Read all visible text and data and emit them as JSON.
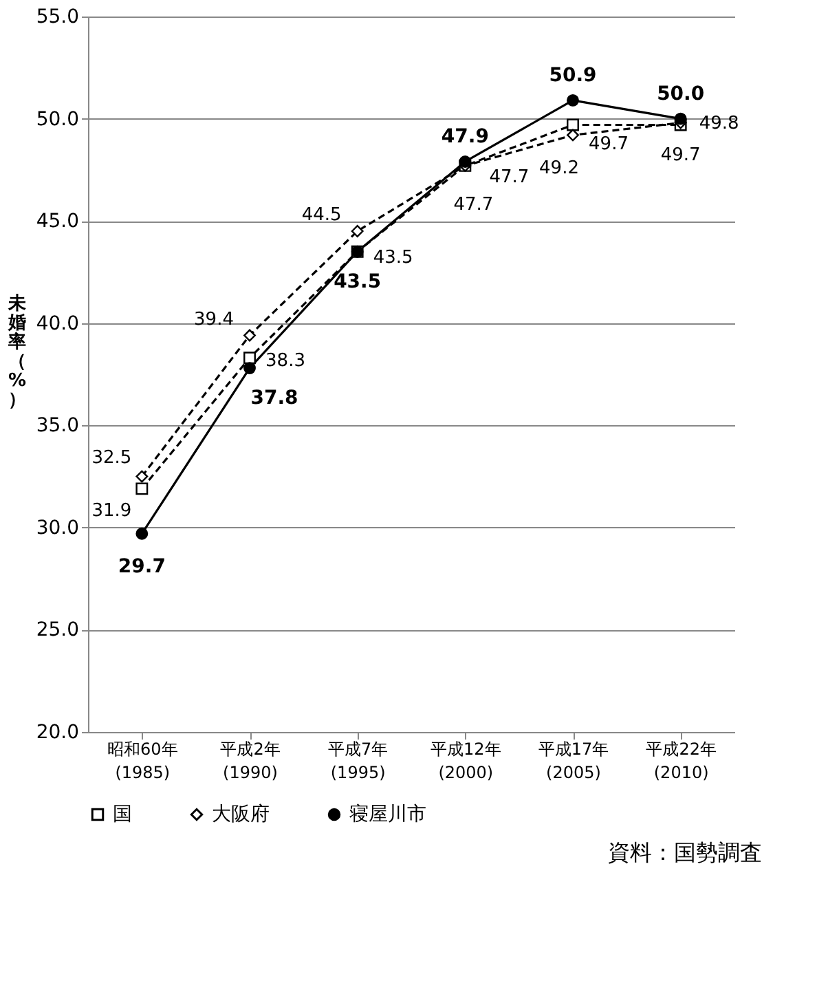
{
  "chart_data": {
    "type": "line",
    "ylabel": "未婚率（%）",
    "categories": [
      "昭和60年\n(1985)",
      "平成2年\n(1990)",
      "平成7年\n(1995)",
      "平成12年\n(2000)",
      "平成17年\n(2005)",
      "平成22年\n(2010)"
    ],
    "series": [
      {
        "name": "国",
        "color": "#000000",
        "marker": "square",
        "line_style": "dashed",
        "values": [
          31.9,
          38.3,
          43.5,
          47.7,
          49.7,
          49.7
        ],
        "value_labels": [
          "31.9",
          "38.3",
          "43.5",
          "47.7",
          "49.7",
          "49.7"
        ]
      },
      {
        "name": "大阪府",
        "color": "#000000",
        "marker": "diamond",
        "line_style": "dashed",
        "values": [
          32.5,
          39.4,
          44.5,
          47.7,
          49.2,
          49.8
        ],
        "value_labels": [
          "32.5",
          "39.4",
          "44.5",
          "47.7",
          "49.2",
          "49.8"
        ]
      },
      {
        "name": "寝屋川市",
        "color": "#000000",
        "marker": "circle",
        "line_style": "solid",
        "values": [
          29.7,
          37.8,
          43.5,
          47.9,
          50.9,
          50.0
        ],
        "value_labels": [
          "29.7",
          "37.8",
          "43.5",
          "47.9",
          "50.9",
          "50.0"
        ]
      }
    ],
    "ylim": [
      20,
      55
    ],
    "yticks": [
      {
        "value": 20,
        "label": "20.0"
      },
      {
        "value": 25,
        "label": "25.0"
      },
      {
        "value": 30,
        "label": "30.0"
      },
      {
        "value": 35,
        "label": "35.0"
      },
      {
        "value": 40,
        "label": "40.0"
      },
      {
        "value": 45,
        "label": "45.0"
      },
      {
        "value": 50,
        "label": "50.0"
      },
      {
        "value": 55,
        "label": "55.0"
      }
    ],
    "grid": "y",
    "legend": "bottom",
    "annotations": [
      "資料：国勢調査"
    ]
  }
}
